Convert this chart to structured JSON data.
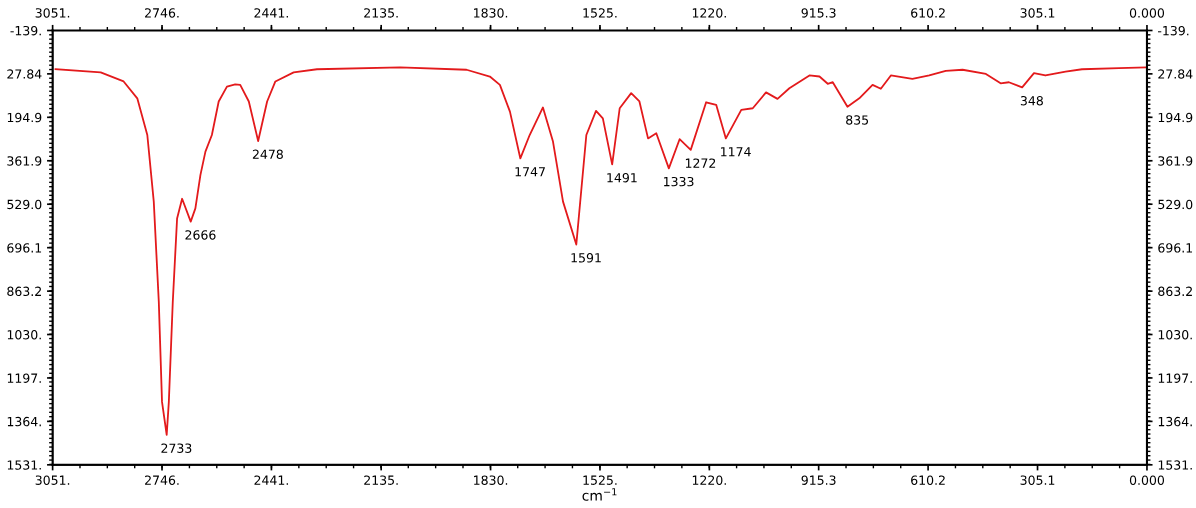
{
  "chart_data": {
    "type": "line",
    "xlabel": "cm$^{−1}$",
    "x": [
      3043,
      2917,
      2853,
      2815,
      2787,
      2769,
      2755,
      2746,
      2733,
      2727,
      2716,
      2704,
      2690,
      2666,
      2653,
      2639,
      2625,
      2607,
      2588,
      2565,
      2542,
      2528,
      2504,
      2478,
      2453,
      2430,
      2379,
      2314,
      2082,
      1897,
      1832,
      1804,
      1776,
      1747,
      1721,
      1684,
      1656,
      1628,
      1591,
      1563,
      1536,
      1517,
      1491,
      1470,
      1438,
      1415,
      1391,
      1368,
      1333,
      1303,
      1272,
      1229,
      1201,
      1174,
      1131,
      1099,
      1062,
      1030,
      997,
      941,
      913,
      890,
      876,
      835,
      802,
      765,
      742,
      714,
      654,
      607,
      561,
      514,
      449,
      408,
      385,
      348,
      315,
      283,
      227,
      181,
      78,
      4
    ],
    "series": [
      {
        "color": "#e31a1c",
        "values": [
          10,
          22,
          57,
          122,
          263,
          519,
          904,
          1289,
          1416,
          1289,
          904,
          584,
          508,
          596,
          545,
          417,
          327,
          263,
          134,
          77,
          68,
          70,
          134,
          286,
          134,
          57,
          22,
          10,
          3,
          12,
          38,
          70,
          173,
          353,
          263,
          157,
          288,
          519,
          684,
          263,
          170,
          199,
          376,
          160,
          102,
          134,
          276,
          256,
          391,
          279,
          320,
          137,
          147,
          276,
          166,
          160,
          99,
          124,
          83,
          34,
          38,
          66,
          60,
          154,
          122,
          70,
          85,
          34,
          47,
          34,
          16,
          12,
          28,
          64,
          60,
          80,
          25,
          34,
          19,
          10,
          6,
          3
        ]
      }
    ],
    "annotations": [
      {
        "text": "2733",
        "x": 2733,
        "y": 1416
      },
      {
        "text": "2666",
        "x": 2666,
        "y": 596
      },
      {
        "text": "2478",
        "x": 2478,
        "y": 286
      },
      {
        "text": "1747",
        "x": 1747,
        "y": 353
      },
      {
        "text": "1591",
        "x": 1591,
        "y": 684
      },
      {
        "text": "1491",
        "x": 1491,
        "y": 376
      },
      {
        "text": "1333",
        "x": 1333,
        "y": 391
      },
      {
        "text": "1272",
        "x": 1272,
        "y": 320
      },
      {
        "text": "1174",
        "x": 1174,
        "y": 276
      },
      {
        "text": "835",
        "x": 835,
        "y": 154
      },
      {
        "text": "348",
        "x": 348,
        "y": 80
      }
    ],
    "xlim": [
      3051,
      0
    ],
    "xticks": [
      {
        "value": 3051,
        "label": "3051."
      },
      {
        "value": 2746,
        "label": "2746."
      },
      {
        "value": 2441,
        "label": "2441."
      },
      {
        "value": 2135,
        "label": "2135."
      },
      {
        "value": 1830,
        "label": "1830."
      },
      {
        "value": 1525,
        "label": "1525."
      },
      {
        "value": 1220,
        "label": "1220."
      },
      915.3,
      610.2,
      305.1,
      {
        "value": 0,
        "label": "0.000"
      }
    ],
    "x2lim": [
      3051,
      0
    ],
    "x2ticks": [
      {
        "value": 3051,
        "label": "3051."
      },
      {
        "value": 2746,
        "label": "2746."
      },
      {
        "value": 2441,
        "label": "2441."
      },
      {
        "value": 2135,
        "label": "2135."
      },
      {
        "value": 1830,
        "label": "1830."
      },
      {
        "value": 1525,
        "label": "1525."
      },
      {
        "value": 1220,
        "label": "1220."
      },
      915.3,
      610.2,
      305.1,
      {
        "value": 0,
        "label": "0.000"
      }
    ],
    "ylim": [
      1531,
      -139
    ],
    "yticks": [
      {
        "value": -139,
        "label": "-139."
      },
      27.84,
      194.9,
      361.9,
      {
        "value": 529,
        "label": "529.0"
      },
      696.1,
      863.2,
      {
        "value": 1030,
        "label": "1030."
      },
      {
        "value": 1197,
        "label": "1197."
      },
      {
        "value": 1364,
        "label": "1364."
      },
      {
        "value": 1531,
        "label": "1531."
      }
    ],
    "y2lim": [
      1531,
      -139
    ],
    "y2ticks": [
      {
        "value": -139,
        "label": "-139."
      },
      27.84,
      194.9,
      361.9,
      {
        "value": 529,
        "label": "529.0"
      },
      696.1,
      863.2,
      {
        "value": 1030,
        "label": "1030."
      },
      {
        "value": 1197,
        "label": "1197."
      },
      {
        "value": 1364,
        "label": "1364."
      },
      {
        "value": 1531,
        "label": "1531."
      }
    ],
    "grid": false,
    "marker": "none",
    "line_style": "solid"
  }
}
